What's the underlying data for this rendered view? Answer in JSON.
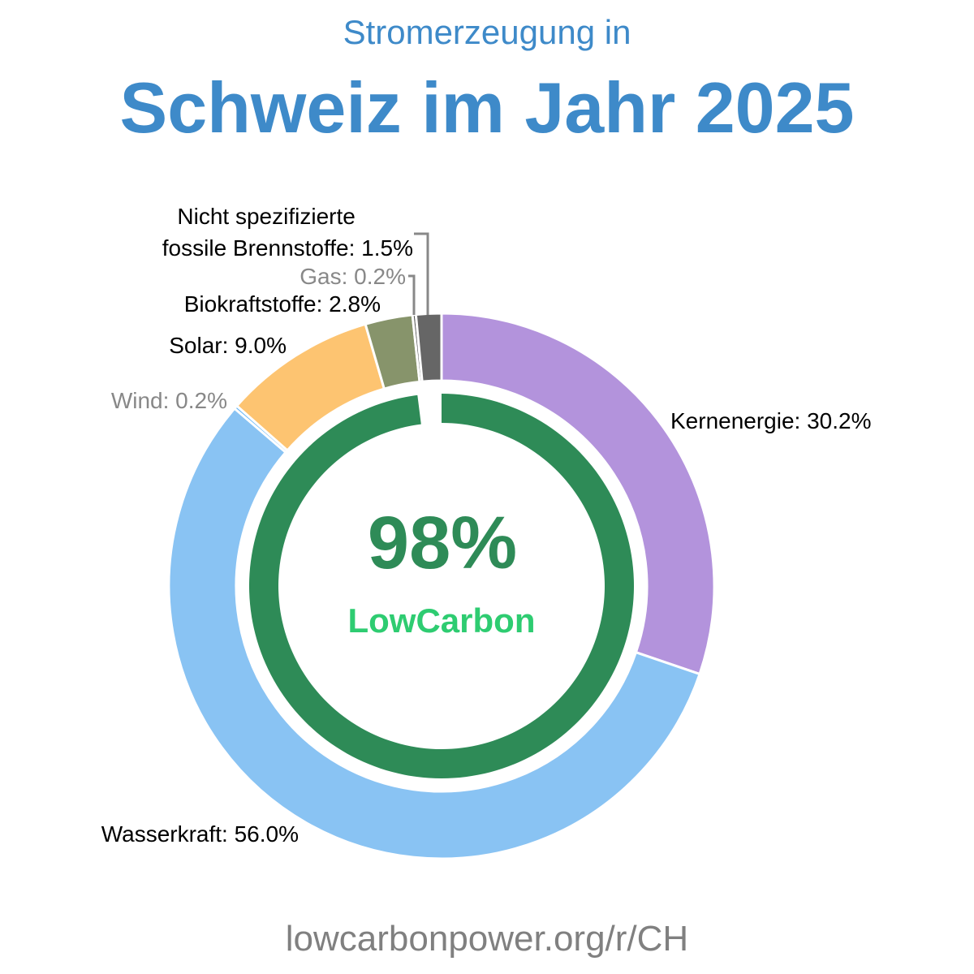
{
  "header": {
    "subtitle": "Stromerzeugung in",
    "title": "Schweiz im Jahr 2025"
  },
  "center": {
    "percent": "98%",
    "brand": "LowCarbon",
    "low_carbon_fraction": 0.98
  },
  "colors": {
    "title": "#3e8ac9",
    "ring": "#2e8b57",
    "brand": "#2ecc71"
  },
  "footer": {
    "url": "lowcarbonpower.org/r/CH"
  },
  "chart_data": {
    "type": "pie",
    "title": "Schweiz im Jahr 2025",
    "subtitle": "Stromerzeugung in",
    "unit": "%",
    "series": [
      {
        "name": "Kernenergie",
        "label": "Kernenergie: 30.2%",
        "value": 30.2,
        "color": "#b393dc",
        "muted": false
      },
      {
        "name": "Wasserkraft",
        "label": "Wasserkraft: 56.0%",
        "value": 56.0,
        "color": "#89c3f3",
        "muted": false
      },
      {
        "name": "Wind",
        "label": "Wind: 0.2%",
        "value": 0.2,
        "color": "#64b5f6",
        "muted": true
      },
      {
        "name": "Solar",
        "label": "Solar: 9.0%",
        "value": 9.0,
        "color": "#fdc471",
        "muted": false
      },
      {
        "name": "Biokraftstoffe",
        "label": "Biokraftstoffe: 2.8%",
        "value": 2.8,
        "color": "#87946b",
        "muted": false
      },
      {
        "name": "Gas",
        "label": "Gas: 0.2%",
        "value": 0.2,
        "color": "#555555",
        "muted": true
      },
      {
        "name": "Nicht spezifizierte fossile Brennstoffe",
        "label": "Nicht spezifizierte fossile Brennstoffe: 1.5%",
        "value": 1.5,
        "color": "#666666",
        "muted": false
      }
    ]
  }
}
